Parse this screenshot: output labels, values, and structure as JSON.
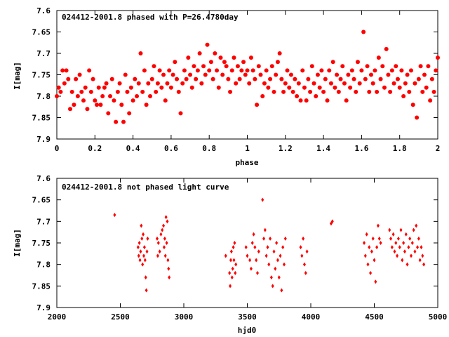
{
  "chart_data": [
    {
      "type": "scatter",
      "title": "024412-2001.8 phased with P=26.4780day",
      "xlabel": "phase",
      "ylabel": "I[mag]",
      "xlim": [
        0,
        2
      ],
      "ylim": [
        7.6,
        7.9
      ],
      "y_inverted": true,
      "xticks": [
        "0",
        "0.2",
        "0.4",
        "0.6",
        "0.8",
        "1",
        "1.2",
        "1.4",
        "1.6",
        "1.8",
        "2"
      ],
      "yticks": [
        "7.6",
        "7.65",
        "7.7",
        "7.75",
        "7.8",
        "7.85",
        "7.9"
      ],
      "marker": "filled circle",
      "color": "#ff0000",
      "points": [
        [
          0.0,
          7.8
        ],
        [
          0.01,
          7.78
        ],
        [
          0.02,
          7.79
        ],
        [
          0.03,
          7.74
        ],
        [
          0.04,
          7.77
        ],
        [
          0.05,
          7.74
        ],
        [
          0.06,
          7.76
        ],
        [
          0.07,
          7.83
        ],
        [
          0.08,
          7.79
        ],
        [
          0.09,
          7.82
        ],
        [
          0.1,
          7.76
        ],
        [
          0.11,
          7.8
        ],
        [
          0.12,
          7.75
        ],
        [
          0.13,
          7.79
        ],
        [
          0.14,
          7.81
        ],
        [
          0.15,
          7.78
        ],
        [
          0.16,
          7.83
        ],
        [
          0.17,
          7.74
        ],
        [
          0.18,
          7.79
        ],
        [
          0.19,
          7.76
        ],
        [
          0.2,
          7.81
        ],
        [
          0.21,
          7.82
        ],
        [
          0.22,
          7.78
        ],
        [
          0.23,
          7.82
        ],
        [
          0.24,
          7.8
        ],
        [
          0.25,
          7.78
        ],
        [
          0.26,
          7.77
        ],
        [
          0.27,
          7.84
        ],
        [
          0.28,
          7.8
        ],
        [
          0.29,
          7.76
        ],
        [
          0.3,
          7.81
        ],
        [
          0.31,
          7.86
        ],
        [
          0.32,
          7.79
        ],
        [
          0.33,
          7.77
        ],
        [
          0.34,
          7.82
        ],
        [
          0.35,
          7.86
        ],
        [
          0.36,
          7.75
        ],
        [
          0.37,
          7.79
        ],
        [
          0.38,
          7.84
        ],
        [
          0.39,
          7.78
        ],
        [
          0.4,
          7.81
        ],
        [
          0.41,
          7.76
        ],
        [
          0.42,
          7.8
        ],
        [
          0.43,
          7.77
        ],
        [
          0.44,
          7.7
        ],
        [
          0.45,
          7.79
        ],
        [
          0.46,
          7.74
        ],
        [
          0.47,
          7.82
        ],
        [
          0.48,
          7.77
        ],
        [
          0.49,
          7.8
        ],
        [
          0.5,
          7.76
        ],
        [
          0.51,
          7.73
        ],
        [
          0.52,
          7.79
        ],
        [
          0.53,
          7.77
        ],
        [
          0.54,
          7.74
        ],
        [
          0.55,
          7.78
        ],
        [
          0.56,
          7.75
        ],
        [
          0.57,
          7.81
        ],
        [
          0.58,
          7.77
        ],
        [
          0.59,
          7.74
        ],
        [
          0.6,
          7.78
        ],
        [
          0.61,
          7.75
        ],
        [
          0.62,
          7.72
        ],
        [
          0.63,
          7.76
        ],
        [
          0.64,
          7.79
        ],
        [
          0.65,
          7.84
        ],
        [
          0.66,
          7.77
        ],
        [
          0.67,
          7.74
        ],
        [
          0.68,
          7.76
        ],
        [
          0.69,
          7.71
        ],
        [
          0.7,
          7.75
        ],
        [
          0.71,
          7.78
        ],
        [
          0.72,
          7.73
        ],
        [
          0.73,
          7.76
        ],
        [
          0.74,
          7.74
        ],
        [
          0.75,
          7.7
        ],
        [
          0.76,
          7.77
        ],
        [
          0.77,
          7.73
        ],
        [
          0.78,
          7.75
        ],
        [
          0.79,
          7.68
        ],
        [
          0.8,
          7.74
        ],
        [
          0.81,
          7.72
        ],
        [
          0.82,
          7.76
        ],
        [
          0.83,
          7.7
        ],
        [
          0.84,
          7.74
        ],
        [
          0.85,
          7.78
        ],
        [
          0.86,
          7.71
        ],
        [
          0.87,
          7.75
        ],
        [
          0.88,
          7.72
        ],
        [
          0.89,
          7.73
        ],
        [
          0.9,
          7.76
        ],
        [
          0.91,
          7.79
        ],
        [
          0.92,
          7.74
        ],
        [
          0.93,
          7.71
        ],
        [
          0.94,
          7.77
        ],
        [
          0.95,
          7.73
        ],
        [
          0.96,
          7.76
        ],
        [
          0.97,
          7.74
        ],
        [
          0.98,
          7.72
        ],
        [
          0.99,
          7.75
        ],
        [
          1.0,
          7.74
        ],
        [
          1.01,
          7.77
        ],
        [
          1.02,
          7.71
        ],
        [
          1.03,
          7.74
        ],
        [
          1.04,
          7.76
        ],
        [
          1.05,
          7.82
        ],
        [
          1.06,
          7.73
        ],
        [
          1.07,
          7.75
        ],
        [
          1.08,
          7.8
        ],
        [
          1.09,
          7.77
        ],
        [
          1.1,
          7.74
        ],
        [
          1.11,
          7.78
        ],
        [
          1.12,
          7.76
        ],
        [
          1.13,
          7.73
        ],
        [
          1.14,
          7.79
        ],
        [
          1.15,
          7.75
        ],
        [
          1.16,
          7.72
        ],
        [
          1.17,
          7.7
        ],
        [
          1.18,
          7.76
        ],
        [
          1.19,
          7.79
        ],
        [
          1.2,
          7.77
        ],
        [
          1.21,
          7.74
        ],
        [
          1.22,
          7.78
        ],
        [
          1.23,
          7.75
        ],
        [
          1.24,
          7.79
        ],
        [
          1.25,
          7.76
        ],
        [
          1.26,
          7.8
        ],
        [
          1.27,
          7.77
        ],
        [
          1.28,
          7.81
        ],
        [
          1.29,
          7.74
        ],
        [
          1.3,
          7.78
        ],
        [
          1.31,
          7.81
        ],
        [
          1.32,
          7.76
        ],
        [
          1.33,
          7.79
        ],
        [
          1.34,
          7.73
        ],
        [
          1.35,
          7.77
        ],
        [
          1.36,
          7.8
        ],
        [
          1.37,
          7.75
        ],
        [
          1.38,
          7.78
        ],
        [
          1.39,
          7.74
        ],
        [
          1.4,
          7.79
        ],
        [
          1.41,
          7.76
        ],
        [
          1.42,
          7.81
        ],
        [
          1.43,
          7.74
        ],
        [
          1.44,
          7.77
        ],
        [
          1.45,
          7.72
        ],
        [
          1.46,
          7.78
        ],
        [
          1.47,
          7.75
        ],
        [
          1.48,
          7.79
        ],
        [
          1.49,
          7.76
        ],
        [
          1.5,
          7.73
        ],
        [
          1.51,
          7.77
        ],
        [
          1.52,
          7.81
        ],
        [
          1.53,
          7.75
        ],
        [
          1.54,
          7.78
        ],
        [
          1.55,
          7.74
        ],
        [
          1.56,
          7.76
        ],
        [
          1.57,
          7.79
        ],
        [
          1.58,
          7.72
        ],
        [
          1.59,
          7.77
        ],
        [
          1.6,
          7.74
        ],
        [
          1.61,
          7.65
        ],
        [
          1.62,
          7.76
        ],
        [
          1.63,
          7.73
        ],
        [
          1.64,
          7.79
        ],
        [
          1.65,
          7.75
        ],
        [
          1.66,
          7.77
        ],
        [
          1.67,
          7.74
        ],
        [
          1.68,
          7.79
        ],
        [
          1.69,
          7.71
        ],
        [
          1.7,
          7.76
        ],
        [
          1.71,
          7.73
        ],
        [
          1.72,
          7.78
        ],
        [
          1.73,
          7.69
        ],
        [
          1.74,
          7.75
        ],
        [
          1.75,
          7.79
        ],
        [
          1.76,
          7.74
        ],
        [
          1.77,
          7.77
        ],
        [
          1.78,
          7.73
        ],
        [
          1.79,
          7.76
        ],
        [
          1.8,
          7.78
        ],
        [
          1.81,
          7.74
        ],
        [
          1.82,
          7.8
        ],
        [
          1.83,
          7.77
        ],
        [
          1.84,
          7.75
        ],
        [
          1.85,
          7.79
        ],
        [
          1.86,
          7.74
        ],
        [
          1.87,
          7.82
        ],
        [
          1.88,
          7.77
        ],
        [
          1.89,
          7.85
        ],
        [
          1.9,
          7.76
        ],
        [
          1.91,
          7.73
        ],
        [
          1.92,
          7.79
        ],
        [
          1.93,
          7.75
        ],
        [
          1.94,
          7.78
        ],
        [
          1.95,
          7.73
        ],
        [
          1.96,
          7.81
        ],
        [
          1.97,
          7.76
        ],
        [
          1.98,
          7.79
        ],
        [
          1.99,
          7.74
        ],
        [
          2.0,
          7.71
        ]
      ]
    },
    {
      "type": "scatter",
      "title": "024412-2001.8 not phased light curve",
      "xlabel": "hjd0",
      "ylabel": "I[mag]",
      "xlim": [
        2000,
        5000
      ],
      "ylim": [
        7.6,
        7.9
      ],
      "y_inverted": true,
      "xticks": [
        "2000",
        "2500",
        "3000",
        "3500",
        "4000",
        "4500",
        "5000"
      ],
      "yticks": [
        "7.6",
        "7.65",
        "7.7",
        "7.75",
        "7.8",
        "7.85",
        "7.9"
      ],
      "marker": "small diamond",
      "color": "#ff0000",
      "points": [
        [
          2455,
          7.685
        ],
        [
          2640,
          7.76
        ],
        [
          2645,
          7.78
        ],
        [
          2650,
          7.75
        ],
        [
          2655,
          7.79
        ],
        [
          2660,
          7.77
        ],
        [
          2665,
          7.71
        ],
        [
          2670,
          7.74
        ],
        [
          2675,
          7.8
        ],
        [
          2680,
          7.73
        ],
        [
          2685,
          7.78
        ],
        [
          2690,
          7.76
        ],
        [
          2695,
          7.79
        ],
        [
          2700,
          7.83
        ],
        [
          2705,
          7.86
        ],
        [
          2710,
          7.77
        ],
        [
          2715,
          7.74
        ],
        [
          2790,
          7.74
        ],
        [
          2795,
          7.78
        ],
        [
          2800,
          7.75
        ],
        [
          2810,
          7.77
        ],
        [
          2820,
          7.73
        ],
        [
          2830,
          7.72
        ],
        [
          2840,
          7.71
        ],
        [
          2845,
          7.76
        ],
        [
          2850,
          7.74
        ],
        [
          2855,
          7.78
        ],
        [
          2860,
          7.69
        ],
        [
          2865,
          7.75
        ],
        [
          2870,
          7.7
        ],
        [
          2875,
          7.79
        ],
        [
          2880,
          7.81
        ],
        [
          2885,
          7.83
        ],
        [
          3330,
          7.78
        ],
        [
          3360,
          7.82
        ],
        [
          3365,
          7.85
        ],
        [
          3370,
          7.79
        ],
        [
          3375,
          7.77
        ],
        [
          3380,
          7.83
        ],
        [
          3385,
          7.81
        ],
        [
          3390,
          7.76
        ],
        [
          3395,
          7.79
        ],
        [
          3400,
          7.75
        ],
        [
          3405,
          7.82
        ],
        [
          3410,
          7.8
        ],
        [
          3490,
          7.76
        ],
        [
          3500,
          7.78
        ],
        [
          3520,
          7.79
        ],
        [
          3530,
          7.81
        ],
        [
          3540,
          7.75
        ],
        [
          3550,
          7.73
        ],
        [
          3560,
          7.76
        ],
        [
          3570,
          7.79
        ],
        [
          3580,
          7.82
        ],
        [
          3590,
          7.77
        ],
        [
          3620,
          7.65
        ],
        [
          3630,
          7.74
        ],
        [
          3640,
          7.72
        ],
        [
          3650,
          7.78
        ],
        [
          3660,
          7.76
        ],
        [
          3670,
          7.8
        ],
        [
          3680,
          7.74
        ],
        [
          3690,
          7.83
        ],
        [
          3700,
          7.85
        ],
        [
          3710,
          7.77
        ],
        [
          3720,
          7.81
        ],
        [
          3730,
          7.75
        ],
        [
          3740,
          7.79
        ],
        [
          3750,
          7.83
        ],
        [
          3760,
          7.78
        ],
        [
          3770,
          7.86
        ],
        [
          3780,
          7.76
        ],
        [
          3790,
          7.8
        ],
        [
          3800,
          7.74
        ],
        [
          3920,
          7.76
        ],
        [
          3930,
          7.78
        ],
        [
          3940,
          7.74
        ],
        [
          3950,
          7.8
        ],
        [
          3960,
          7.82
        ],
        [
          3970,
          7.77
        ],
        [
          4160,
          7.705
        ],
        [
          4170,
          7.7
        ],
        [
          4420,
          7.75
        ],
        [
          4430,
          7.78
        ],
        [
          4440,
          7.73
        ],
        [
          4450,
          7.8
        ],
        [
          4460,
          7.76
        ],
        [
          4470,
          7.82
        ],
        [
          4480,
          7.77
        ],
        [
          4490,
          7.74
        ],
        [
          4500,
          7.79
        ],
        [
          4510,
          7.84
        ],
        [
          4520,
          7.76
        ],
        [
          4530,
          7.71
        ],
        [
          4540,
          7.74
        ],
        [
          4550,
          7.75
        ],
        [
          4620,
          7.72
        ],
        [
          4630,
          7.74
        ],
        [
          4640,
          7.76
        ],
        [
          4650,
          7.73
        ],
        [
          4660,
          7.77
        ],
        [
          4670,
          7.75
        ],
        [
          4680,
          7.78
        ],
        [
          4690,
          7.74
        ],
        [
          4700,
          7.76
        ],
        [
          4710,
          7.72
        ],
        [
          4720,
          7.79
        ],
        [
          4730,
          7.75
        ],
        [
          4740,
          7.77
        ],
        [
          4750,
          7.73
        ],
        [
          4760,
          7.8
        ],
        [
          4770,
          7.76
        ],
        [
          4780,
          7.74
        ],
        [
          4790,
          7.78
        ],
        [
          4800,
          7.75
        ],
        [
          4810,
          7.72
        ],
        [
          4820,
          7.77
        ],
        [
          4830,
          7.71
        ],
        [
          4840,
          7.76
        ],
        [
          4850,
          7.74
        ],
        [
          4860,
          7.79
        ],
        [
          4870,
          7.76
        ],
        [
          4880,
          7.78
        ],
        [
          4890,
          7.8
        ]
      ]
    }
  ]
}
